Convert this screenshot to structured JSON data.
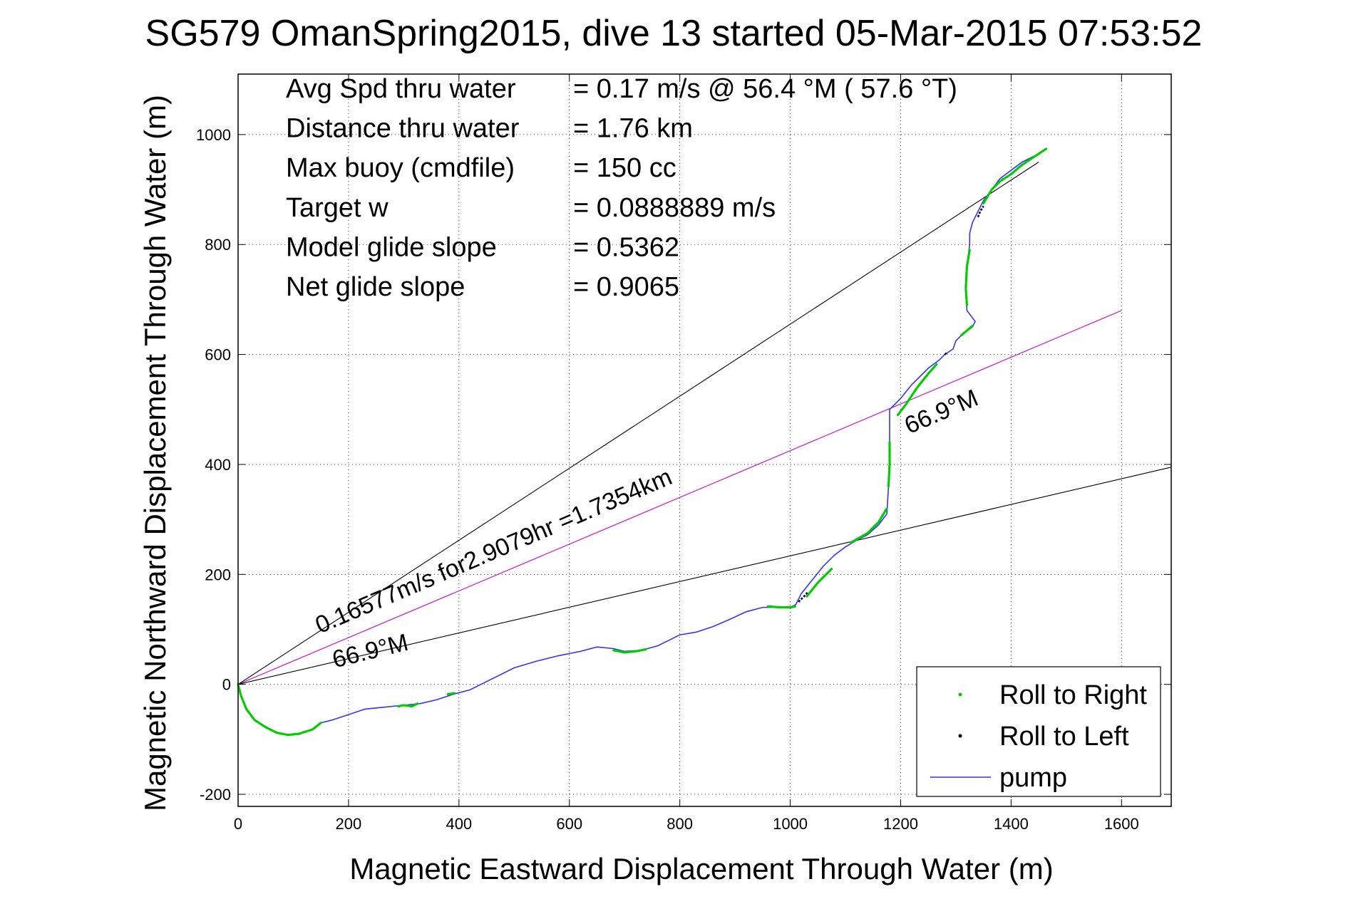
{
  "chart_data": {
    "type": "line",
    "title": "SG579 OmanSpring2015, dive 13 started 05-Mar-2015 07:53:52",
    "xlabel": "Magnetic Eastward Displacement Through Water (m)",
    "ylabel": "Magnetic Northward Displacement Through Water (m)",
    "xlim": [
      0,
      1690
    ],
    "ylim": [
      -222,
      1110
    ],
    "xticks": [
      0,
      200,
      400,
      600,
      800,
      1000,
      1200,
      1400,
      1600
    ],
    "yticks": [
      -200,
      0,
      200,
      400,
      600,
      800,
      1000
    ],
    "grid": true,
    "legend_placement": "bottom-right",
    "colors": {
      "roll_right": "#00cc00",
      "roll_left": "#000044",
      "pump": "#3333ff",
      "heading_line": "#cc00cc",
      "bound_lines": "#000000"
    },
    "stats": [
      {
        "label": "Avg Spd thru water",
        "value": "=  0.17 m/s @  56.4 °M ( 57.6 °T)"
      },
      {
        "label": "Distance thru water",
        "value": "=  1.76 km"
      },
      {
        "label": "Max buoy (cmdfile)",
        "value": "= 150 cc"
      },
      {
        "label": "Target w",
        "value": "= 0.0888889 m/s"
      },
      {
        "label": "Model glide slope",
        "value": "= 0.5362"
      },
      {
        "label": "Net glide slope",
        "value": "= 0.9065"
      }
    ],
    "annotations": [
      {
        "text": "0.16577m/s for2.9079hr =1.7354km",
        "x": 148,
        "y": 92,
        "angle_deg": 23.1
      },
      {
        "text": "66.9°M",
        "x": 175,
        "y": 30,
        "angle_deg": 13.7
      },
      {
        "text": "66.9°M",
        "x": 1215,
        "y": 455,
        "angle_deg": 23.1
      }
    ],
    "reference_lines": [
      {
        "name": "heading",
        "color": "magenta",
        "x": [
          0,
          1600
        ],
        "y": [
          0,
          680
        ]
      },
      {
        "name": "upper-bound",
        "color": "black",
        "x": [
          0,
          1450
        ],
        "y": [
          0,
          950
        ]
      },
      {
        "name": "lower-bound",
        "color": "black",
        "x": [
          0,
          1690
        ],
        "y": [
          0,
          395
        ]
      }
    ],
    "series": [
      {
        "name": "pump",
        "x": [
          0,
          5,
          15,
          30,
          50,
          70,
          90,
          110,
          135,
          150,
          170,
          200,
          230,
          260,
          300,
          330,
          360,
          390,
          420,
          460,
          500,
          540,
          580,
          620,
          650,
          680,
          700,
          730,
          760,
          780,
          800,
          830,
          860,
          890,
          920,
          950,
          980,
          1000,
          1010,
          1020,
          1040,
          1060,
          1080,
          1100,
          1120,
          1140,
          1160,
          1175,
          1178,
          1180,
          1180,
          1180,
          1180,
          1200,
          1220,
          1250,
          1270,
          1280,
          1295,
          1300,
          1310,
          1330,
          1335,
          1320,
          1318,
          1320,
          1325,
          1325,
          1330,
          1340,
          1350,
          1365,
          1380,
          1400,
          1420,
          1450,
          1465
        ],
        "y": [
          0,
          -20,
          -45,
          -65,
          -78,
          -88,
          -92,
          -90,
          -82,
          -70,
          -65,
          -55,
          -45,
          -42,
          -38,
          -35,
          -28,
          -18,
          -10,
          10,
          30,
          42,
          52,
          60,
          68,
          65,
          60,
          62,
          70,
          80,
          90,
          95,
          105,
          118,
          132,
          140,
          140,
          140,
          145,
          165,
          190,
          215,
          235,
          250,
          262,
          272,
          290,
          310,
          360,
          400,
          440,
          480,
          500,
          520,
          545,
          575,
          590,
          600,
          610,
          625,
          635,
          650,
          660,
          680,
          720,
          760,
          800,
          820,
          840,
          860,
          880,
          900,
          920,
          935,
          950,
          965,
          975
        ]
      },
      {
        "name": "Roll to Right",
        "marker": "dot",
        "segments": [
          {
            "x": [
              0,
              5,
              15,
              30,
              50,
              70,
              90,
              110,
              135,
              150
            ],
            "y": [
              0,
              -20,
              -45,
              -65,
              -78,
              -88,
              -92,
              -90,
              -82,
              -70
            ]
          },
          {
            "x": [
              290,
              300,
              315,
              325
            ],
            "y": [
              -40,
              -38,
              -40,
              -35
            ]
          },
          {
            "x": [
              380,
              392
            ],
            "y": [
              -18,
              -16
            ]
          },
          {
            "x": [
              680,
              700,
              720,
              740
            ],
            "y": [
              62,
              58,
              60,
              64
            ]
          },
          {
            "x": [
              960,
              980,
              1000,
              1010
            ],
            "y": [
              142,
              140,
              140,
              142
            ]
          },
          {
            "x": [
              1030,
              1050,
              1075
            ],
            "y": [
              160,
              185,
              210
            ]
          },
          {
            "x": [
              1110,
              1140,
              1160,
              1175
            ],
            "y": [
              258,
              275,
              295,
              320
            ]
          },
          {
            "x": [
              1178,
              1180,
              1180
            ],
            "y": [
              360,
              400,
              440
            ]
          },
          {
            "x": [
              1195,
              1210,
              1230,
              1250,
              1265
            ],
            "y": [
              490,
              510,
              540,
              565,
              582
            ]
          },
          {
            "x": [
              1310,
              1330
            ],
            "y": [
              635,
              652
            ]
          },
          {
            "x": [
              1320,
              1318,
              1320,
              1325
            ],
            "y": [
              690,
              720,
              760,
              790
            ]
          },
          {
            "x": [
              1350,
              1365,
              1380,
              1400,
              1420,
              1450,
              1465
            ],
            "y": [
              875,
              900,
              915,
              928,
              945,
              965,
              975
            ]
          }
        ]
      },
      {
        "name": "Roll to Left",
        "marker": "dot",
        "segments": [
          {
            "x": [
              1015,
              1025,
              1032
            ],
            "y": [
              150,
              160,
              168
            ]
          },
          {
            "x": [
              1280,
              1285
            ],
            "y": [
              600,
              604
            ]
          },
          {
            "x": [
              1340,
              1345,
              1350
            ],
            "y": [
              850,
              862,
              870
            ]
          }
        ]
      }
    ],
    "legend": [
      {
        "label": "Roll to Right",
        "style": "dot",
        "color": "#00cc00"
      },
      {
        "label": "Roll to Left",
        "style": "dot",
        "color": "#000000"
      },
      {
        "label": "pump",
        "style": "line",
        "color": "#3333ff"
      }
    ]
  }
}
